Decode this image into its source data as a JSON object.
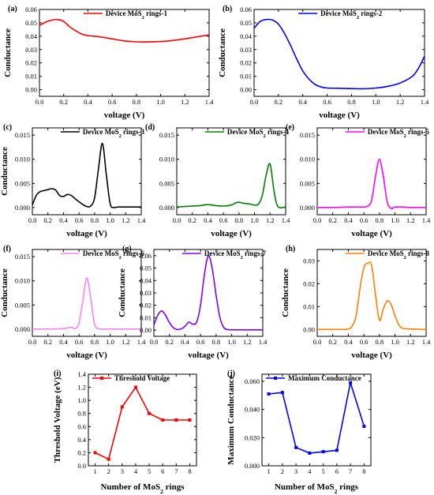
{
  "chart_data": [
    {
      "id": "a",
      "panel_label": "(a)",
      "type": "line",
      "xlabel": "voltage (V)",
      "ylabel": "Conductance",
      "xlim": [
        0,
        1.4
      ],
      "ylim": [
        -0.005,
        0.06
      ],
      "xticks": [
        0,
        0.2,
        0.4,
        0.6,
        0.8,
        1.0,
        1.2,
        1.4
      ],
      "xtick_labels": [
        "0.0",
        "0.2",
        "0.4",
        "0.6",
        "0.8",
        "1.0",
        "1.2",
        "1.4"
      ],
      "yticks": [
        0,
        0.01,
        0.02,
        0.03,
        0.04,
        0.05,
        0.06
      ],
      "ytick_labels": [
        "0.00",
        "0.01",
        "0.02",
        "0.03",
        "0.04",
        "0.05",
        "0.06"
      ],
      "legend": {
        "position": "top-right",
        "label_base": "Device MoS",
        "label_sub": "2",
        "label_tail": " rings-1"
      },
      "series": [
        {
          "name": "Device MoS2 rings-1",
          "color": "#ff0000",
          "x": [
            0,
            0.05,
            0.1,
            0.15,
            0.2,
            0.25,
            0.3,
            0.35,
            0.4,
            0.5,
            0.6,
            0.7,
            0.8,
            0.9,
            1.0,
            1.1,
            1.2,
            1.3,
            1.4
          ],
          "y": [
            0.048,
            0.0505,
            0.052,
            0.0525,
            0.051,
            0.047,
            0.044,
            0.0415,
            0.0405,
            0.0395,
            0.038,
            0.0365,
            0.0358,
            0.0357,
            0.036,
            0.0368,
            0.038,
            0.0395,
            0.041
          ]
        }
      ]
    },
    {
      "id": "b",
      "panel_label": "(b)",
      "type": "line",
      "xlabel": "voltage (V)",
      "ylabel": "Conductance",
      "xlim": [
        0,
        1.4
      ],
      "ylim": [
        -0.005,
        0.06
      ],
      "xticks": [
        0,
        0.2,
        0.4,
        0.6,
        0.8,
        1.0,
        1.2,
        1.4
      ],
      "xtick_labels": [
        "0.0",
        "0.2",
        "0.4",
        "0.6",
        "0.8",
        "1.0",
        "1.2",
        "1.4"
      ],
      "yticks": [
        0,
        0.01,
        0.02,
        0.03,
        0.04,
        0.05,
        0.06
      ],
      "ytick_labels": [
        "0.00",
        "0.01",
        "0.02",
        "0.03",
        "0.04",
        "0.05",
        "0.06"
      ],
      "legend": {
        "position": "top-right",
        "label_base": "Device MoS",
        "label_sub": "2",
        "label_tail": " rings-2"
      },
      "series": [
        {
          "name": "Device MoS2 rings-2",
          "color": "#0000ff",
          "x": [
            0,
            0.05,
            0.1,
            0.15,
            0.2,
            0.25,
            0.3,
            0.35,
            0.4,
            0.45,
            0.5,
            0.55,
            0.6,
            0.7,
            0.8,
            0.9,
            1.0,
            1.1,
            1.2,
            1.3,
            1.35,
            1.4
          ],
          "y": [
            0.046,
            0.051,
            0.0525,
            0.0522,
            0.049,
            0.042,
            0.033,
            0.023,
            0.014,
            0.008,
            0.004,
            0.002,
            0.0012,
            0.001,
            0.0008,
            0.0007,
            0.0012,
            0.0025,
            0.005,
            0.01,
            0.016,
            0.025
          ]
        }
      ]
    },
    {
      "id": "c",
      "panel_label": "(c)",
      "type": "line",
      "xlabel": "voltage (V)",
      "ylabel": "Conductance",
      "xlim": [
        0,
        1.4
      ],
      "ylim": [
        -0.0015,
        0.0165
      ],
      "xticks": [
        0,
        0.2,
        0.4,
        0.6,
        0.8,
        1.0,
        1.2,
        1.4
      ],
      "xtick_labels": [
        "0.0",
        "0.2",
        "0.4",
        "0.6",
        "0.8",
        "1.0",
        "1.2",
        "1.4"
      ],
      "yticks": [
        0,
        0.005,
        0.01,
        0.015
      ],
      "ytick_labels": [
        "0.000",
        "0.005",
        "0.010",
        "0.015"
      ],
      "legend": {
        "position": "top-right",
        "label_base": "Device MoS",
        "label_sub": "2",
        "label_tail": " rings-3"
      },
      "series": [
        {
          "name": "Device MoS2 rings-3",
          "color": "#000000",
          "x": [
            0,
            0.05,
            0.1,
            0.15,
            0.2,
            0.25,
            0.3,
            0.35,
            0.4,
            0.45,
            0.5,
            0.55,
            0.6,
            0.65,
            0.7,
            0.75,
            0.8,
            0.85,
            0.9,
            0.95,
            1.0,
            1.05,
            1.1,
            1.2,
            1.3,
            1.4
          ],
          "y": [
            0.0005,
            0.0025,
            0.0033,
            0.0035,
            0.0037,
            0.0039,
            0.0036,
            0.0025,
            0.0023,
            0.0027,
            0.0025,
            0.0018,
            0.0012,
            0.0006,
            0.0002,
            0.0003,
            0.002,
            0.008,
            0.0133,
            0.007,
            0.0008,
            0.0,
            0.0001,
            0.0001,
            0.0001,
            0.0001
          ]
        }
      ]
    },
    {
      "id": "d",
      "panel_label": "(d)",
      "type": "line",
      "xlabel": "voltage (V)",
      "ylabel": "",
      "xlim": [
        0,
        1.4
      ],
      "ylim": [
        -0.0015,
        0.0165
      ],
      "xticks": [
        0,
        0.2,
        0.4,
        0.6,
        0.8,
        1.0,
        1.2,
        1.4
      ],
      "xtick_labels": [
        "0.0",
        "0.2",
        "0.4",
        "0.6",
        "0.8",
        "1.0",
        "1.2",
        "1.4"
      ],
      "yticks": [
        0,
        0.005,
        0.01,
        0.015
      ],
      "ytick_labels": [
        "0.000",
        "0.005",
        "0.010",
        "0.015"
      ],
      "legend": {
        "position": "top-right",
        "label_base": "Device MoS",
        "label_sub": "2",
        "label_tail": " rings-4"
      },
      "series": [
        {
          "name": "Device MoS2 rings-4",
          "color": "#008000",
          "x": [
            0,
            0.1,
            0.2,
            0.3,
            0.4,
            0.5,
            0.6,
            0.7,
            0.75,
            0.8,
            0.85,
            0.9,
            0.95,
            1.0,
            1.05,
            1.1,
            1.15,
            1.2,
            1.25,
            1.3,
            1.4
          ],
          "y": [
            0.0001,
            0.0002,
            0.0003,
            0.0004,
            0.0006,
            0.0004,
            0.0003,
            0.0005,
            0.0009,
            0.0011,
            0.0009,
            0.0008,
            0.0007,
            0.0005,
            0.0007,
            0.0025,
            0.0068,
            0.009,
            0.0035,
            0.0002,
            0.0001
          ]
        }
      ]
    },
    {
      "id": "e",
      "panel_label": "(e)",
      "type": "line",
      "xlabel": "voltage (V)",
      "ylabel": "",
      "xlim": [
        0,
        1.4
      ],
      "ylim": [
        -0.0015,
        0.0165
      ],
      "xticks": [
        0,
        0.2,
        0.4,
        0.6,
        0.8,
        1.0,
        1.2,
        1.4
      ],
      "xtick_labels": [
        "0.0",
        "0.2",
        "0.4",
        "0.6",
        "0.8",
        "1.0",
        "1.2",
        "1.4"
      ],
      "yticks": [
        0,
        0.005,
        0.01,
        0.015
      ],
      "ytick_labels": [
        "0.000",
        "0.005",
        "0.010",
        "0.015"
      ],
      "legend": {
        "position": "top-right",
        "label_base": "Device MoS",
        "label_sub": "2",
        "label_tail": " rings-5"
      },
      "series": [
        {
          "name": "Device MoS2 rings-5",
          "color": "#ff00ff",
          "x": [
            0,
            0.2,
            0.4,
            0.5,
            0.6,
            0.65,
            0.7,
            0.75,
            0.8,
            0.85,
            0.9,
            0.95,
            1.0,
            1.1,
            1.2,
            1.4
          ],
          "y": [
            0,
            0,
            0.0001,
            0.0001,
            0.0001,
            0.0003,
            0.0015,
            0.0065,
            0.01,
            0.0065,
            0.0012,
            -0.0002,
            0.0001,
            0.0001,
            0,
            0
          ]
        }
      ]
    },
    {
      "id": "f",
      "panel_label": "(f)",
      "type": "line",
      "xlabel": "voltage (V)",
      "ylabel": "Conductance",
      "xlim": [
        0,
        1.4
      ],
      "ylim": [
        -0.0015,
        0.0165
      ],
      "xticks": [
        0,
        0.2,
        0.4,
        0.6,
        0.8,
        1.0,
        1.2,
        1.4
      ],
      "xtick_labels": [
        "0.0",
        "0.2",
        "0.4",
        "0.6",
        "0.8",
        "1.0",
        "1.2",
        "1.4"
      ],
      "yticks": [
        0,
        0.005,
        0.01,
        0.015
      ],
      "ytick_labels": [
        "0.000",
        "0.005",
        "0.010",
        "0.015"
      ],
      "legend": {
        "position": "top-right",
        "label_base": "Device MoS",
        "label_sub": "2",
        "label_tail": " rings-6"
      },
      "series": [
        {
          "name": "Device MoS2 rings-6",
          "color": "#ff80ff",
          "x": [
            0,
            0.2,
            0.4,
            0.45,
            0.5,
            0.55,
            0.6,
            0.65,
            0.7,
            0.75,
            0.8,
            0.85,
            0.9,
            1.0,
            1.2,
            1.4
          ],
          "y": [
            0,
            0,
            0.0001,
            0.0002,
            0.0004,
            0.0001,
            0.0012,
            0.006,
            0.0106,
            0.0065,
            0.001,
            0.0001,
            0,
            0,
            0,
            0
          ]
        }
      ]
    },
    {
      "id": "g",
      "panel_label": "(g)",
      "type": "line",
      "xlabel": "voltage (V)",
      "ylabel": "Conductance",
      "xlim": [
        0,
        1.4
      ],
      "ylim": [
        -0.005,
        0.065
      ],
      "xticks": [
        0,
        0.2,
        0.4,
        0.6,
        0.8,
        1.0,
        1.2,
        1.4
      ],
      "xtick_labels": [
        "0.0",
        "0.2",
        "0.4",
        "0.6",
        "0.8",
        "1.0",
        "1.2",
        "1.4"
      ],
      "yticks": [
        0,
        0.01,
        0.02,
        0.03,
        0.04,
        0.05,
        0.06
      ],
      "ytick_labels": [
        "0.00",
        "0.01",
        "0.02",
        "0.03",
        "0.04",
        "0.05",
        "0.06"
      ],
      "legend": {
        "position": "top-right",
        "label_base": "Device MoS",
        "label_sub": "2",
        "label_tail": " rings-7"
      },
      "series": [
        {
          "name": "Device MoS2 rings-7",
          "color": "#8000ff",
          "x": [
            0,
            0.05,
            0.1,
            0.15,
            0.2,
            0.25,
            0.3,
            0.35,
            0.4,
            0.45,
            0.5,
            0.55,
            0.6,
            0.65,
            0.7,
            0.75,
            0.8,
            0.85,
            0.9,
            0.95,
            1.0,
            1.1,
            1.2,
            1.4
          ],
          "y": [
            0.004,
            0.012,
            0.0155,
            0.012,
            0.006,
            0.002,
            0.0005,
            0.001,
            0.003,
            0.0065,
            0.0048,
            0.0065,
            0.02,
            0.045,
            0.06,
            0.05,
            0.028,
            0.01,
            0.002,
            0.0005,
            0.0003,
            0.0002,
            0.0002,
            0.0002
          ]
        }
      ]
    },
    {
      "id": "h",
      "panel_label": "(h)",
      "type": "line",
      "xlabel": "voltage (V)",
      "ylabel": "Conductance",
      "xlim": [
        0,
        1.4
      ],
      "ylim": [
        -0.003,
        0.035
      ],
      "xticks": [
        0,
        0.2,
        0.4,
        0.6,
        0.8,
        1.0,
        1.2,
        1.4
      ],
      "xtick_labels": [
        "0.0",
        "0.2",
        "0.4",
        "0.6",
        "0.8",
        "1.0",
        "1.2",
        "1.4"
      ],
      "yticks": [
        0,
        0.01,
        0.02,
        0.03
      ],
      "ytick_labels": [
        "0.00",
        "0.01",
        "0.02",
        "0.03"
      ],
      "legend": {
        "position": "top-right",
        "label_base": "Device MoS",
        "label_sub": "2",
        "label_tail": " rings-8"
      },
      "series": [
        {
          "name": "Device MoS2 rings-8",
          "color": "#ff8000",
          "x": [
            0,
            0.1,
            0.2,
            0.3,
            0.4,
            0.45,
            0.5,
            0.55,
            0.6,
            0.65,
            0.7,
            0.75,
            0.8,
            0.85,
            0.9,
            0.95,
            1.0,
            1.05,
            1.1,
            1.2,
            1.3,
            1.4
          ],
          "y": [
            0,
            0,
            0,
            0,
            0.0002,
            0.0015,
            0.006,
            0.018,
            0.027,
            0.029,
            0.028,
            0.015,
            0.004,
            0.009,
            0.0125,
            0.011,
            0.006,
            0.002,
            0.0005,
            0.0002,
            0.0001,
            0
          ]
        }
      ]
    },
    {
      "id": "i",
      "panel_label": "(i)",
      "type": "line",
      "xlabel_base": "Number of MoS",
      "xlabel_sub": "2",
      "xlabel_tail": " rings",
      "ylabel": "Threshold Voltage (eV)",
      "xlim": [
        0.5,
        8.5
      ],
      "ylim": [
        0,
        1.4
      ],
      "xticks": [
        1,
        2,
        3,
        4,
        5,
        6,
        7,
        8
      ],
      "xtick_labels": [
        "1",
        "2",
        "3",
        "4",
        "5",
        "6",
        "7",
        "8"
      ],
      "yticks": [
        0,
        0.2,
        0.4,
        0.6,
        0.8,
        1.0,
        1.2,
        1.4
      ],
      "ytick_labels": [
        "0.0",
        "0.2",
        "0.4",
        "0.6",
        "0.8",
        "1.0",
        "1.2",
        "1.4"
      ],
      "markers": true,
      "legend": {
        "position": "top-right",
        "label_base": "Threshold Voltage",
        "label_sub": "",
        "label_tail": ""
      },
      "series": [
        {
          "name": "Threshold Voltage",
          "color": "#ff0000",
          "x": [
            1,
            2,
            3,
            4,
            5,
            6,
            7,
            8
          ],
          "y": [
            0.2,
            0.1,
            0.9,
            1.2,
            0.8,
            0.7,
            0.7,
            0.7
          ]
        }
      ]
    },
    {
      "id": "j",
      "panel_label": "(j)",
      "type": "line",
      "xlabel_base": "Number of MoS",
      "xlabel_sub": "2",
      "xlabel_tail": " rings",
      "ylabel": "Maximum Conductance",
      "xlim": [
        0.5,
        8.5
      ],
      "ylim": [
        0,
        0.065
      ],
      "xticks": [
        1,
        2,
        3,
        4,
        5,
        6,
        7,
        8
      ],
      "xtick_labels": [
        "1",
        "2",
        "3",
        "4",
        "5",
        "6",
        "7",
        "8"
      ],
      "yticks": [
        0,
        0.02,
        0.04,
        0.06
      ],
      "ytick_labels": [
        "0.000",
        "0.020",
        "0.040",
        "0.060"
      ],
      "markers": true,
      "legend": {
        "position": "top-right",
        "label_base": "Maximum Conductance",
        "label_sub": "",
        "label_tail": ""
      },
      "series": [
        {
          "name": "Maximum Conductance",
          "color": "#0000ff",
          "x": [
            1,
            2,
            3,
            4,
            5,
            6,
            7,
            8
          ],
          "y": [
            0.051,
            0.052,
            0.013,
            0.009,
            0.01,
            0.011,
            0.059,
            0.028
          ]
        }
      ]
    }
  ]
}
